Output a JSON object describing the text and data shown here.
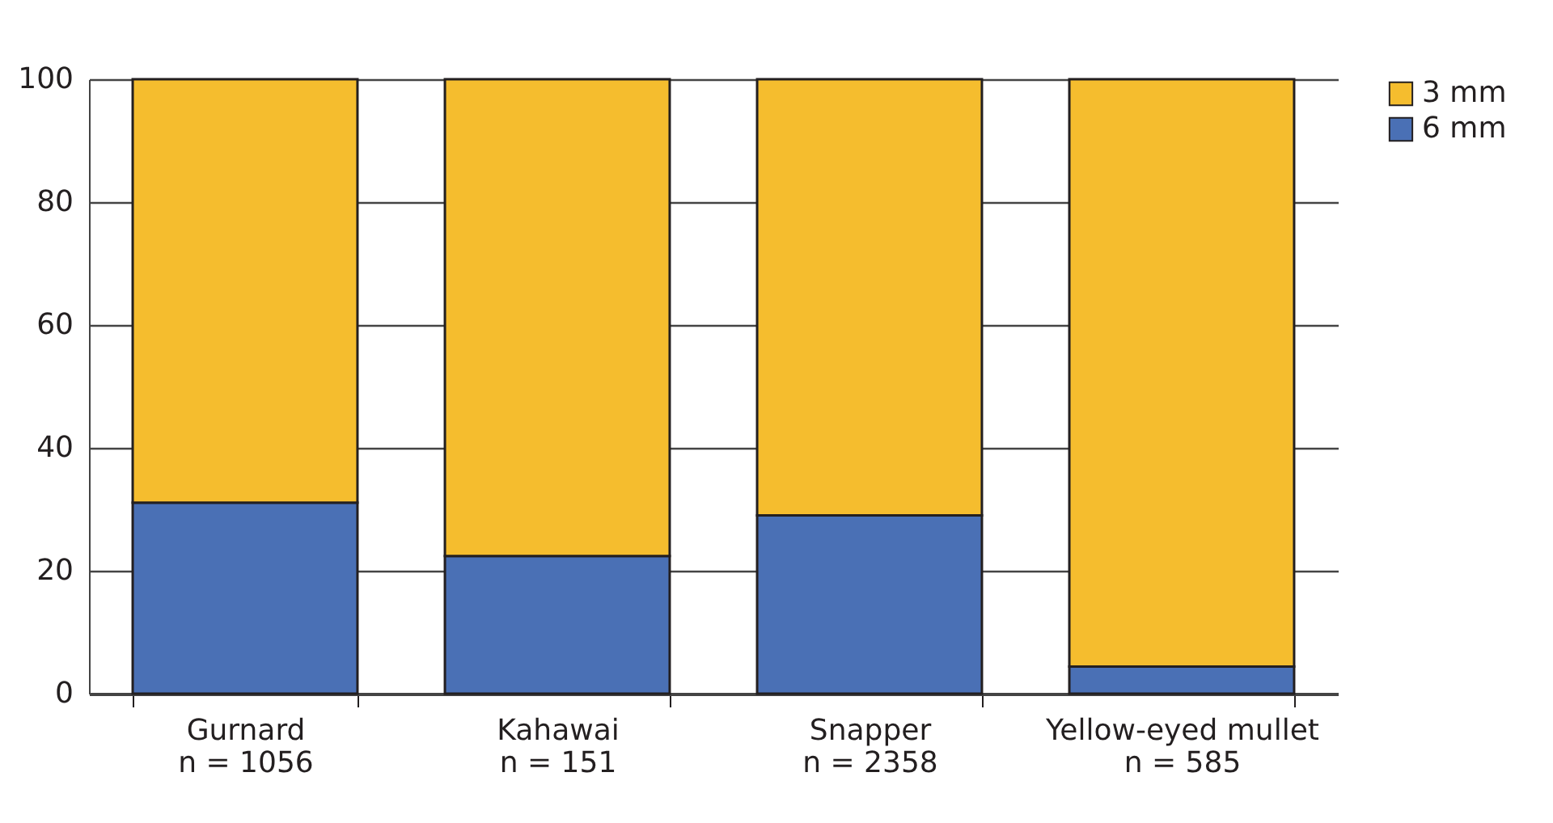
{
  "chart_data": {
    "type": "bar",
    "stacked": true,
    "categories": [
      "Gurnard\nn = 1056",
      "Kahawai\nn = 151",
      "Snapper\nn = 2358",
      "Yellow-eyed mullet\nn = 585"
    ],
    "series": [
      {
        "name": "6 mm",
        "color": "#4a70b5",
        "values": [
          31.1,
          22.4,
          29.0,
          4.4
        ]
      },
      {
        "name": "3 mm",
        "color": "#f5bd2e",
        "values": [
          68.9,
          77.6,
          71.0,
          95.6
        ]
      }
    ],
    "ylim": [
      0,
      100
    ],
    "yticks": [
      0,
      20,
      40,
      60,
      80,
      100
    ],
    "grid": "y",
    "legend": "top right"
  }
}
